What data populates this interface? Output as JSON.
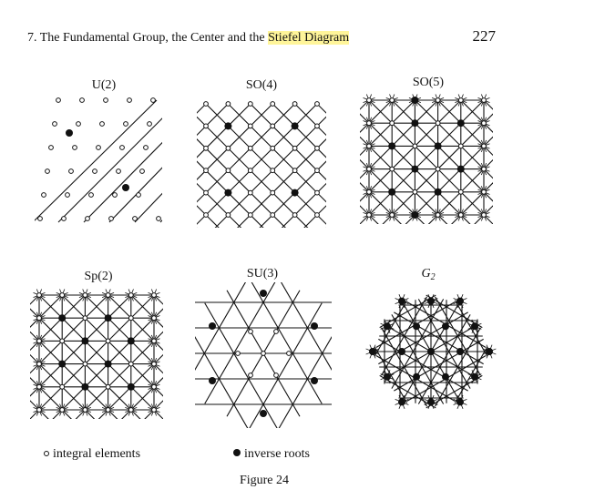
{
  "header": {
    "chapter_text": "7. The Fundamental Group, the Center and the ",
    "highlight_text": "Stiefel Diagram",
    "page_number": "227"
  },
  "diagrams": [
    {
      "label": "U(2)"
    },
    {
      "label": "SO(4)"
    },
    {
      "label": "SO(5)"
    },
    {
      "label": "Sp(2)"
    },
    {
      "label": "SU(3)"
    },
    {
      "label_main": "G",
      "label_sub": "2"
    }
  ],
  "legend": {
    "open_label": "integral elements",
    "filled_label": "inverse roots"
  },
  "caption": "Figure 24",
  "colors": {
    "highlight": "#fff59a",
    "ink": "#111111"
  }
}
